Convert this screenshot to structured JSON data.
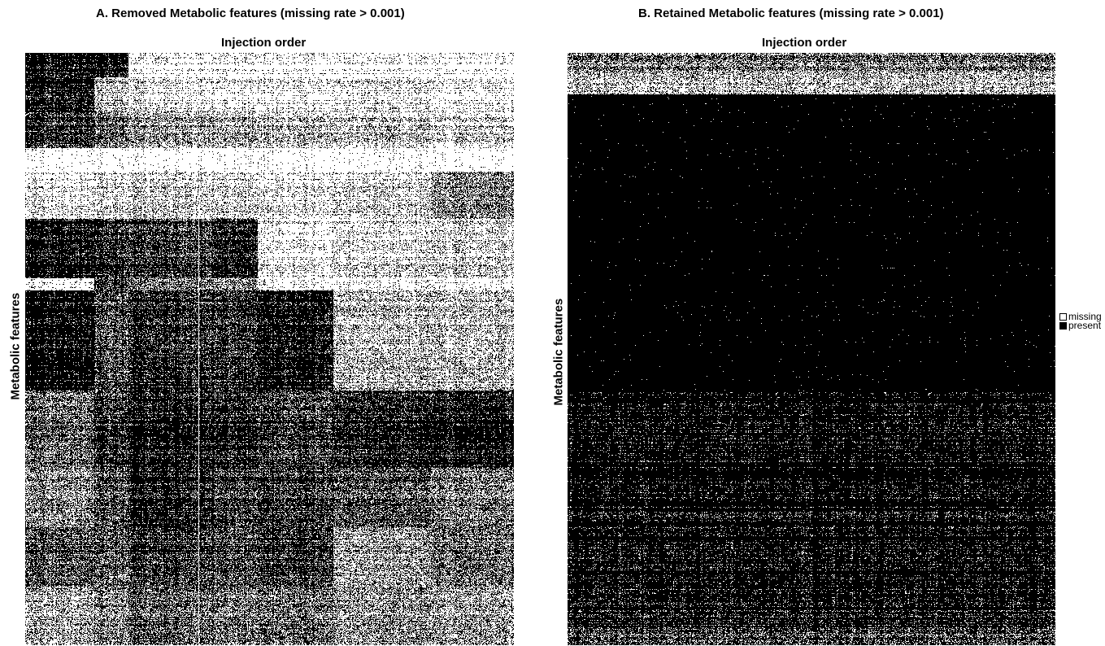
{
  "chart_data": [
    {
      "type": "heatmap",
      "title": "A. Removed Metabolic features (missing rate > 0.001)",
      "xlabel": "Injection order",
      "ylabel": "Metabolic features",
      "values": [
        "missing",
        "present"
      ],
      "colors": {
        "missing": "#ffffff",
        "present": "#000000"
      },
      "grid": false,
      "columns": [
        {
          "fraction": [
            0.0,
            0.14
          ]
        },
        {
          "fraction": [
            0.14,
            0.21
          ]
        },
        {
          "fraction": [
            0.21,
            0.385
          ]
        },
        {
          "fraction": [
            0.385,
            0.475
          ]
        },
        {
          "fraction": [
            0.475,
            0.63
          ]
        },
        {
          "fraction": [
            0.63,
            0.83
          ]
        },
        {
          "fraction": [
            0.83,
            1.0
          ]
        }
      ],
      "feature_bands": [
        {
          "fraction": [
            0.0,
            0.04
          ],
          "present": [
            0.92,
            0.9,
            0.08,
            0.08,
            0.05,
            0.05,
            0.04
          ]
        },
        {
          "fraction": [
            0.04,
            0.1
          ],
          "present": [
            0.9,
            0.3,
            0.15,
            0.1,
            0.1,
            0.15,
            0.1
          ]
        },
        {
          "fraction": [
            0.1,
            0.16
          ],
          "present": [
            0.8,
            0.6,
            0.4,
            0.35,
            0.3,
            0.25,
            0.2
          ]
        },
        {
          "fraction": [
            0.16,
            0.2
          ],
          "present": [
            0.0,
            0.0,
            0.0,
            0.0,
            0.0,
            0.0,
            0.0
          ]
        },
        {
          "fraction": [
            0.2,
            0.28
          ],
          "present": [
            0.15,
            0.2,
            0.25,
            0.2,
            0.15,
            0.2,
            0.5
          ]
        },
        {
          "fraction": [
            0.28,
            0.38
          ],
          "present": [
            0.95,
            0.85,
            0.8,
            0.9,
            0.15,
            0.2,
            0.25
          ]
        },
        {
          "fraction": [
            0.38,
            0.4
          ],
          "present": [
            0.1,
            0.8,
            0.6,
            0.5,
            0.1,
            0.1,
            0.1
          ]
        },
        {
          "fraction": [
            0.4,
            0.57
          ],
          "present": [
            0.97,
            0.7,
            0.85,
            0.8,
            0.92,
            0.3,
            0.3
          ]
        },
        {
          "fraction": [
            0.57,
            0.7
          ],
          "present": [
            0.6,
            0.8,
            0.9,
            0.85,
            0.75,
            0.85,
            0.9
          ]
        },
        {
          "fraction": [
            0.7,
            0.8
          ],
          "present": [
            0.5,
            0.7,
            0.9,
            0.75,
            0.8,
            0.7,
            0.55
          ]
        },
        {
          "fraction": [
            0.8,
            0.9
          ],
          "present": [
            0.7,
            0.65,
            0.8,
            0.7,
            0.8,
            0.4,
            0.6
          ]
        },
        {
          "fraction": [
            0.9,
            1.0
          ],
          "present": [
            0.35,
            0.5,
            0.65,
            0.55,
            0.6,
            0.45,
            0.4
          ]
        }
      ]
    },
    {
      "type": "heatmap",
      "title": "B. Retained Metabolic features (missing rate > 0.001)",
      "xlabel": "Injection order",
      "ylabel": "Metabolic features",
      "values": [
        "missing",
        "present"
      ],
      "colors": {
        "missing": "#ffffff",
        "present": "#000000"
      },
      "grid": false,
      "feature_bands": [
        {
          "fraction": [
            0.0,
            0.03
          ],
          "present": 0.55
        },
        {
          "fraction": [
            0.03,
            0.07
          ],
          "present": 0.3
        },
        {
          "fraction": [
            0.07,
            0.57
          ],
          "present": 0.999
        },
        {
          "fraction": [
            0.57,
            0.75
          ],
          "present": 0.99
        },
        {
          "fraction": [
            0.75,
            0.9
          ],
          "present": 0.95
        },
        {
          "fraction": [
            0.9,
            0.97
          ],
          "present": 0.88
        },
        {
          "fraction": [
            0.97,
            1.0
          ],
          "present": 0.72
        }
      ],
      "legend": {
        "placement": "right",
        "entries": [
          {
            "label": "missing",
            "color": "#ffffff"
          },
          {
            "label": "present",
            "color": "#000000"
          }
        ]
      }
    }
  ]
}
